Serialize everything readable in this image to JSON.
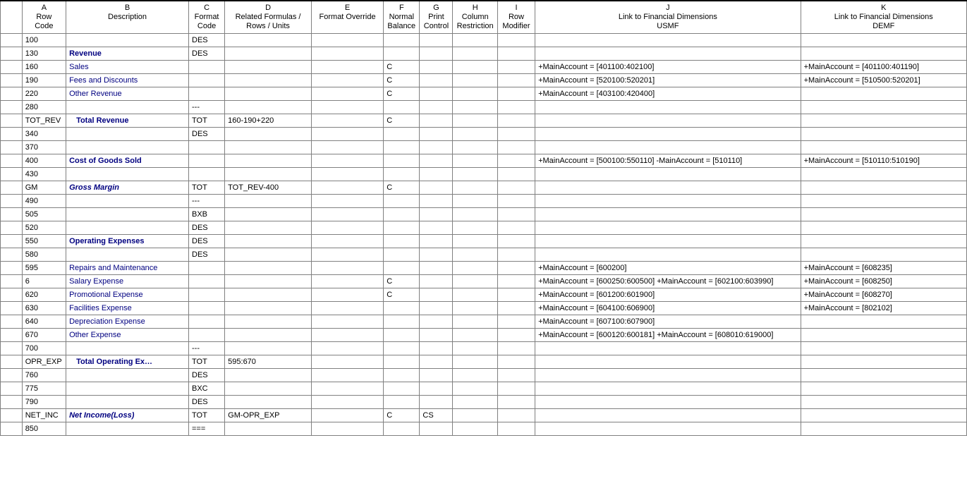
{
  "columns": [
    {
      "key": "A",
      "label": "A\nRow\nCode"
    },
    {
      "key": "B",
      "label": "B\nDescription"
    },
    {
      "key": "C",
      "label": "C\nFormat\nCode"
    },
    {
      "key": "D",
      "label": "D\nRelated Formulas /\nRows / Units"
    },
    {
      "key": "E",
      "label": "E\nFormat Override"
    },
    {
      "key": "F",
      "label": "F\nNormal\nBalance"
    },
    {
      "key": "G",
      "label": "G\nPrint\nControl"
    },
    {
      "key": "H",
      "label": "H\nColumn\nRestriction"
    },
    {
      "key": "I",
      "label": "I\nRow\nModifier"
    },
    {
      "key": "J",
      "label": "J\nLink to Financial Dimensions\nUSMF"
    },
    {
      "key": "K",
      "label": "K\nLink to Financial Dimensions\nDEMF"
    }
  ],
  "rows": [
    {
      "a": "100",
      "b": "",
      "bstyle": "",
      "c": "DES",
      "d": "",
      "e": "",
      "f": "",
      "g": "",
      "h": "",
      "i": "",
      "j": "",
      "k": ""
    },
    {
      "a": "130",
      "b": "Revenue",
      "bstyle": "bold",
      "c": "DES",
      "d": "",
      "e": "",
      "f": "",
      "g": "",
      "h": "",
      "i": "",
      "j": "",
      "k": ""
    },
    {
      "a": "160",
      "b": "Sales",
      "bstyle": "link",
      "c": "",
      "d": "",
      "e": "",
      "f": "C",
      "g": "",
      "h": "",
      "i": "",
      "j": "+MainAccount = [401100:402100]",
      "k": "+MainAccount = [401100:401190]"
    },
    {
      "a": "190",
      "b": "Fees and Discounts",
      "bstyle": "link",
      "c": "",
      "d": "",
      "e": "",
      "f": "C",
      "g": "",
      "h": "",
      "i": "",
      "j": "+MainAccount = [520100:520201]",
      "k": "+MainAccount = [510500:520201]"
    },
    {
      "a": "220",
      "b": "Other Revenue",
      "bstyle": "link",
      "c": "",
      "d": "",
      "e": "",
      "f": "C",
      "g": "",
      "h": "",
      "i": "",
      "j": "+MainAccount = [403100:420400]",
      "k": ""
    },
    {
      "a": "280",
      "b": "",
      "bstyle": "",
      "c": "---",
      "d": "",
      "e": "",
      "f": "",
      "g": "",
      "h": "",
      "i": "",
      "j": "",
      "k": ""
    },
    {
      "a": "TOT_REV",
      "b": "Total Revenue",
      "bstyle": "bold indent",
      "c": "TOT",
      "d": "160-190+220",
      "e": "",
      "f": "C",
      "g": "",
      "h": "",
      "i": "",
      "j": "",
      "k": ""
    },
    {
      "a": "340",
      "b": "",
      "bstyle": "",
      "c": "DES",
      "d": "",
      "e": "",
      "f": "",
      "g": "",
      "h": "",
      "i": "",
      "j": "",
      "k": ""
    },
    {
      "a": "370",
      "b": "",
      "bstyle": "",
      "c": "",
      "d": "",
      "e": "",
      "f": "",
      "g": "",
      "h": "",
      "i": "",
      "j": "",
      "k": ""
    },
    {
      "a": "400",
      "b": "Cost of Goods Sold",
      "bstyle": "bold",
      "c": "",
      "d": "",
      "e": "",
      "f": "",
      "g": "",
      "h": "",
      "i": "",
      "j": "+MainAccount = [500100:550110] -MainAccount = [510110]",
      "k": "+MainAccount = [510110:510190]"
    },
    {
      "a": "430",
      "b": "",
      "bstyle": "",
      "c": "",
      "d": "",
      "e": "",
      "f": "",
      "g": "",
      "h": "",
      "i": "",
      "j": "",
      "k": ""
    },
    {
      "a": "GM",
      "b": "Gross Margin",
      "bstyle": "bolditalic",
      "c": "TOT",
      "d": "TOT_REV-400",
      "e": "",
      "f": "C",
      "g": "",
      "h": "",
      "i": "",
      "j": "",
      "k": ""
    },
    {
      "a": "490",
      "b": "",
      "bstyle": "",
      "c": "---",
      "d": "",
      "e": "",
      "f": "",
      "g": "",
      "h": "",
      "i": "",
      "j": "",
      "k": ""
    },
    {
      "a": "505",
      "b": "",
      "bstyle": "",
      "c": "BXB",
      "d": "",
      "e": "",
      "f": "",
      "g": "",
      "h": "",
      "i": "",
      "j": "",
      "k": ""
    },
    {
      "a": "520",
      "b": "",
      "bstyle": "",
      "c": "DES",
      "d": "",
      "e": "",
      "f": "",
      "g": "",
      "h": "",
      "i": "",
      "j": "",
      "k": ""
    },
    {
      "a": "550",
      "b": "Operating Expenses",
      "bstyle": "bold",
      "c": "DES",
      "d": "",
      "e": "",
      "f": "",
      "g": "",
      "h": "",
      "i": "",
      "j": "",
      "k": ""
    },
    {
      "a": "580",
      "b": "",
      "bstyle": "",
      "c": "DES",
      "d": "",
      "e": "",
      "f": "",
      "g": "",
      "h": "",
      "i": "",
      "j": "",
      "k": ""
    },
    {
      "a": "595",
      "b": "Repairs and Maintenance",
      "bstyle": "link",
      "c": "",
      "d": "",
      "e": "",
      "f": "",
      "g": "",
      "h": "",
      "i": "",
      "j": "+MainAccount = [600200]",
      "k": "+MainAccount = [608235]"
    },
    {
      "a": "6",
      "b": "Salary Expense",
      "bstyle": "link",
      "c": "",
      "d": "",
      "e": "",
      "f": "C",
      "g": "",
      "h": "",
      "i": "",
      "j": "+MainAccount = [600250:600500] +MainAccount = [602100:603990]",
      "k": "+MainAccount = [608250]"
    },
    {
      "a": "620",
      "b": "Promotional Expense",
      "bstyle": "link",
      "c": "",
      "d": "",
      "e": "",
      "f": "C",
      "g": "",
      "h": "",
      "i": "",
      "j": "+MainAccount = [601200:601900]",
      "k": "+MainAccount = [608270]"
    },
    {
      "a": "630",
      "b": "Facilities Expense",
      "bstyle": "link",
      "c": "",
      "d": "",
      "e": "",
      "f": "",
      "g": "",
      "h": "",
      "i": "",
      "j": "+MainAccount = [604100:606900]",
      "k": "+MainAccount = [802102]"
    },
    {
      "a": "640",
      "b": "Depreciation Expense",
      "bstyle": "link",
      "c": "",
      "d": "",
      "e": "",
      "f": "",
      "g": "",
      "h": "",
      "i": "",
      "j": "+MainAccount = [607100:607900]",
      "k": ""
    },
    {
      "a": "670",
      "b": "Other Expense",
      "bstyle": "link",
      "c": "",
      "d": "",
      "e": "",
      "f": "",
      "g": "",
      "h": "",
      "i": "",
      "j": "+MainAccount = [600120:600181] +MainAccount = [608010:619000]",
      "k": ""
    },
    {
      "a": "700",
      "b": "",
      "bstyle": "",
      "c": "---",
      "d": "",
      "e": "",
      "f": "",
      "g": "",
      "h": "",
      "i": "",
      "j": "",
      "k": ""
    },
    {
      "a": "OPR_EXP",
      "b": "Total Operating Ex…",
      "bstyle": "bold indent",
      "c": "TOT",
      "d": "595:670",
      "e": "",
      "f": "",
      "g": "",
      "h": "",
      "i": "",
      "j": "",
      "k": ""
    },
    {
      "a": "760",
      "b": "",
      "bstyle": "",
      "c": "DES",
      "d": "",
      "e": "",
      "f": "",
      "g": "",
      "h": "",
      "i": "",
      "j": "",
      "k": ""
    },
    {
      "a": "775",
      "b": "",
      "bstyle": "",
      "c": "BXC",
      "d": "",
      "e": "",
      "f": "",
      "g": "",
      "h": "",
      "i": "",
      "j": "",
      "k": ""
    },
    {
      "a": "790",
      "b": "",
      "bstyle": "",
      "c": "DES",
      "d": "",
      "e": "",
      "f": "",
      "g": "",
      "h": "",
      "i": "",
      "j": "",
      "k": ""
    },
    {
      "a": "NET_INC",
      "b": "Net Income(Loss)",
      "bstyle": "bolditalic",
      "c": "TOT",
      "d": "GM-OPR_EXP",
      "e": "",
      "f": "C",
      "g": "CS",
      "h": "",
      "i": "",
      "j": "",
      "k": ""
    },
    {
      "a": "850",
      "b": "",
      "bstyle": "",
      "c": "===",
      "d": "",
      "e": "",
      "f": "",
      "g": "",
      "h": "",
      "i": "",
      "j": "",
      "k": ""
    }
  ]
}
